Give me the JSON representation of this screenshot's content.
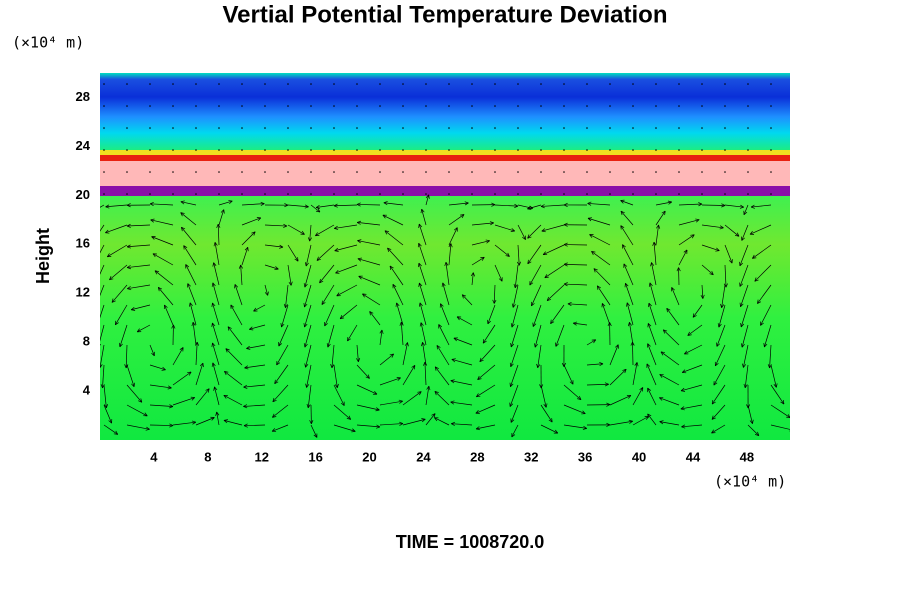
{
  "chart_data": {
    "type": "contour",
    "title": "Vertial Potential Temperature Deviation",
    "ylabel": "Height",
    "yunit": "(×10⁴ m)",
    "xunit": "(×10⁴ m)",
    "annotation": "TIME = 1008720.0",
    "xlim": [
      0,
      51.2
    ],
    "xticks": [
      4,
      8,
      12,
      16,
      20,
      24,
      28,
      32,
      36,
      40,
      44,
      48
    ],
    "ylim": [
      0,
      30
    ],
    "yticks": [
      4,
      8,
      12,
      16,
      20,
      24,
      28
    ]
  }
}
